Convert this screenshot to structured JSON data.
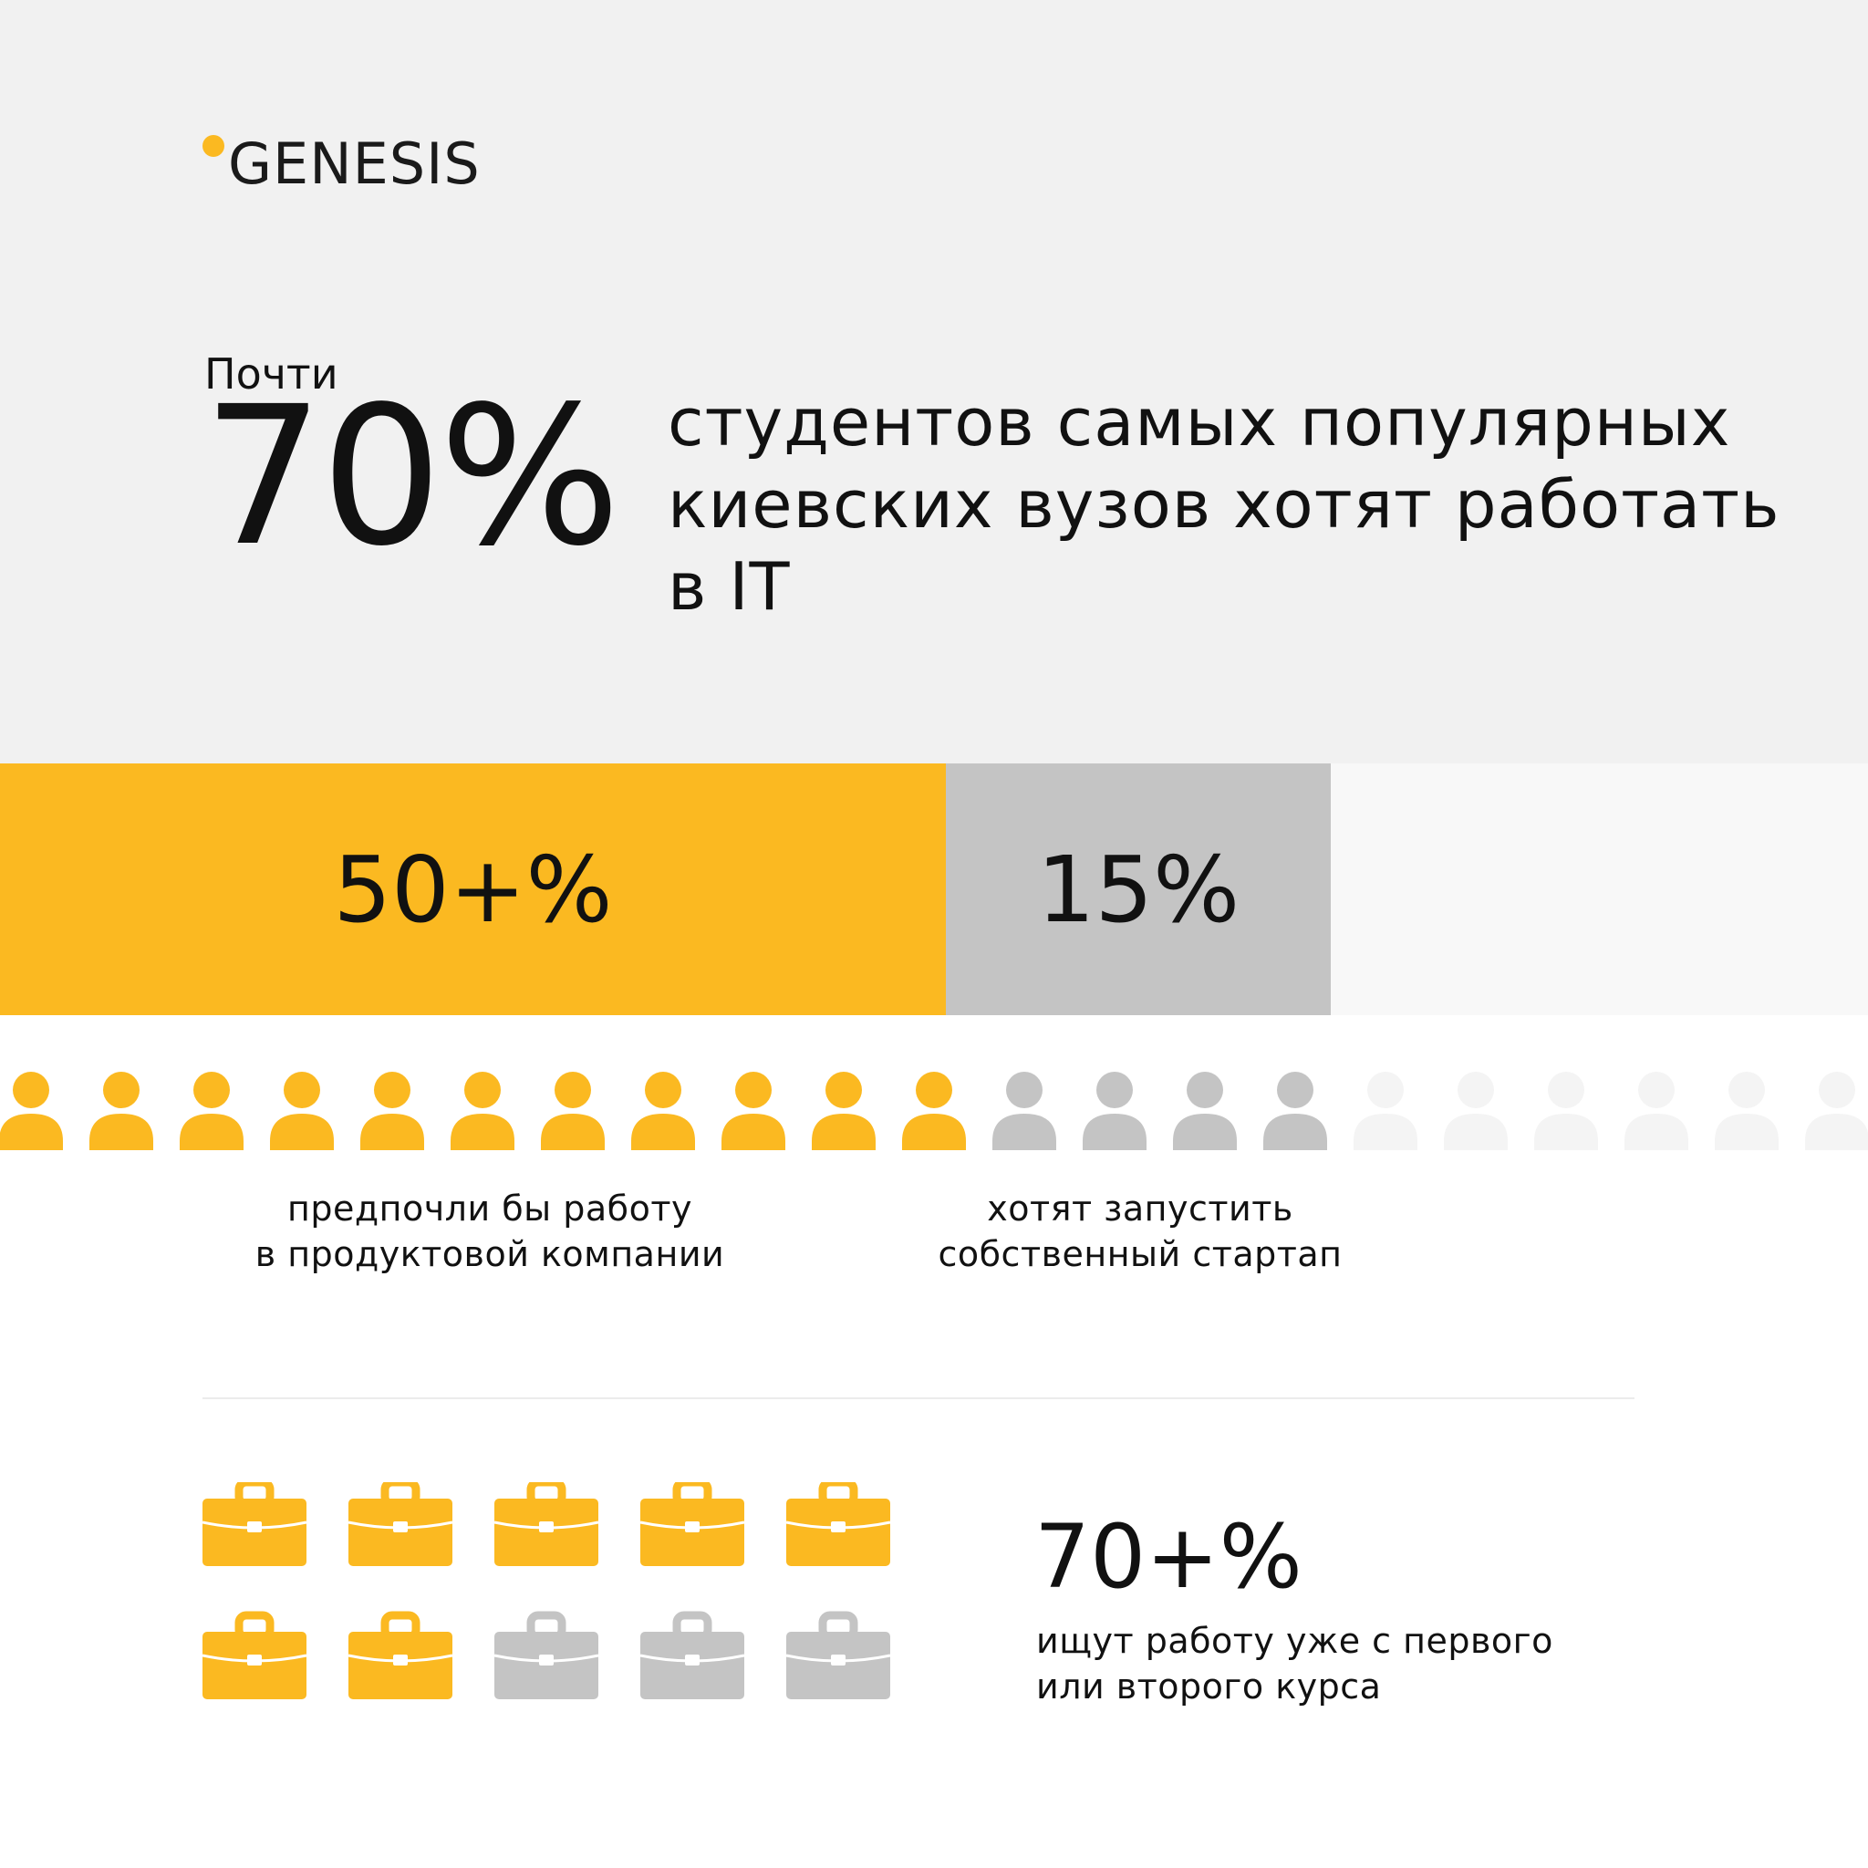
{
  "brand": {
    "name": "GENESIS",
    "accent_color": "#fbb921"
  },
  "headline": {
    "prefix": "Почти",
    "percent": "70%",
    "text": "студентов самых популярных киевских вузов хотят работать в IT"
  },
  "bar": {
    "segments": [
      {
        "label": "50+%",
        "color": "#fbb921"
      },
      {
        "label": "15%",
        "color": "#c4c4c4"
      },
      {
        "label": "",
        "color": "#f8f8f8"
      }
    ]
  },
  "people": {
    "counts": {
      "yellow": 11,
      "grey": 4,
      "light": 6
    },
    "colors": {
      "yellow": "#fbb921",
      "grey": "#c4c4c4",
      "light": "#f4f4f4"
    },
    "icon": "person-icon"
  },
  "descriptions": {
    "product": "предпочли бы работу\nв продуктовой компании",
    "startup": "хотят запустить\nсобственный стартап"
  },
  "work": {
    "percent": "70+%",
    "text": "ищут работу уже с первого\nили второго курса",
    "briefcases": {
      "yellow": 7,
      "grey": 3,
      "per_row": 5
    },
    "icon": "briefcase-icon"
  }
}
